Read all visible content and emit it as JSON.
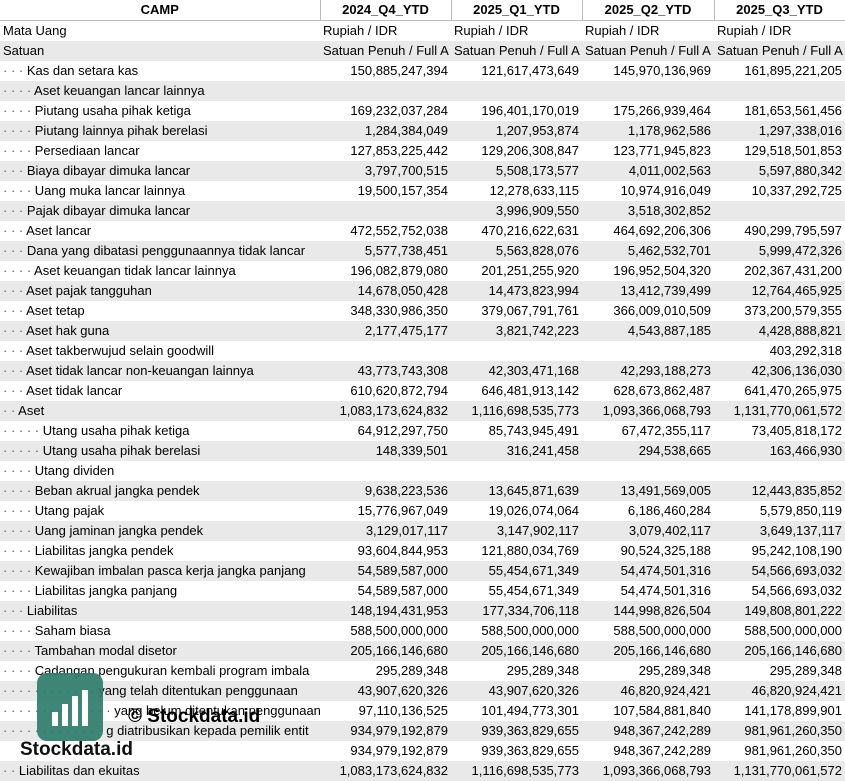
{
  "header": {
    "ticker": "CAMP",
    "periods": [
      "2024_Q4_YTD",
      "2025_Q1_YTD",
      "2025_Q2_YTD",
      "2025_Q3_YTD"
    ]
  },
  "meta_rows": [
    {
      "label": "Mata Uang",
      "values": [
        "Rupiah / IDR",
        "Rupiah / IDR",
        "Rupiah / IDR",
        "Rupiah / IDR"
      ]
    },
    {
      "label": "Satuan",
      "values": [
        "Satuan Penuh / Full A",
        "Satuan Penuh / Full A",
        "Satuan Penuh / Full A",
        "Satuan Penuh / Full A"
      ]
    }
  ],
  "rows": [
    {
      "dots": "· · · ",
      "label": "Kas dan setara kas",
      "values": [
        "150,885,247,394",
        "121,617,473,649",
        "145,970,136,969",
        "161,895,221,205"
      ]
    },
    {
      "dots": "· · · · ",
      "label": "Aset keuangan lancar lainnya",
      "values": [
        "",
        "",
        "",
        ""
      ]
    },
    {
      "dots": "· · · · ",
      "label": "Piutang usaha pihak ketiga",
      "values": [
        "169,232,037,284",
        "196,401,170,019",
        "175,266,939,464",
        "181,653,561,456"
      ]
    },
    {
      "dots": "· · · · ",
      "label": "Piutang lainnya pihak berelasi",
      "values": [
        "1,284,384,049",
        "1,207,953,874",
        "1,178,962,586",
        "1,297,338,016"
      ]
    },
    {
      "dots": "· · · · ",
      "label": "Persediaan lancar",
      "values": [
        "127,853,225,442",
        "129,206,308,847",
        "123,771,945,823",
        "129,518,501,853"
      ]
    },
    {
      "dots": "· · · ",
      "label": "Biaya dibayar dimuka lancar",
      "values": [
        "3,797,700,515",
        "5,508,173,577",
        "4,011,002,563",
        "5,597,880,342"
      ]
    },
    {
      "dots": "· · · · ",
      "label": "Uang muka lancar lainnya",
      "values": [
        "19,500,157,354",
        "12,278,633,115",
        "10,974,916,049",
        "10,337,292,725"
      ]
    },
    {
      "dots": "· · · ",
      "label": "Pajak dibayar dimuka lancar",
      "values": [
        "",
        "3,996,909,550",
        "3,518,302,852",
        ""
      ]
    },
    {
      "dots": "· · · ",
      "label": "Aset lancar",
      "values": [
        "472,552,752,038",
        "470,216,622,631",
        "464,692,206,306",
        "490,299,795,597"
      ]
    },
    {
      "dots": "· · · ",
      "label": "Dana yang dibatasi penggunaannya tidak lancar",
      "values": [
        "5,577,738,451",
        "5,563,828,076",
        "5,462,532,701",
        "5,999,472,326"
      ]
    },
    {
      "dots": "· · · · ",
      "label": "Aset keuangan tidak lancar lainnya",
      "values": [
        "196,082,879,080",
        "201,251,255,920",
        "196,952,504,320",
        "202,367,431,200"
      ]
    },
    {
      "dots": "· · · ",
      "label": "Aset pajak tangguhan",
      "values": [
        "14,678,050,428",
        "14,473,823,994",
        "13,412,739,499",
        "12,764,465,925"
      ]
    },
    {
      "dots": "· · · ",
      "label": "Aset tetap",
      "values": [
        "348,330,986,350",
        "379,067,791,761",
        "366,009,010,509",
        "373,200,579,355"
      ]
    },
    {
      "dots": "· · · ",
      "label": "Aset hak guna",
      "values": [
        "2,177,475,177",
        "3,821,742,223",
        "4,543,887,185",
        "4,428,888,821"
      ]
    },
    {
      "dots": "· · · ",
      "label": "Aset takberwujud selain goodwill",
      "values": [
        "",
        "",
        "",
        "403,292,318"
      ]
    },
    {
      "dots": "· · · ",
      "label": "Aset tidak lancar non-keuangan lainnya",
      "values": [
        "43,773,743,308",
        "42,303,471,168",
        "42,293,188,273",
        "42,306,136,030"
      ]
    },
    {
      "dots": "· · · ",
      "label": "Aset tidak lancar",
      "values": [
        "610,620,872,794",
        "646,481,913,142",
        "628,673,862,487",
        "641,470,265,975"
      ]
    },
    {
      "dots": "· · ",
      "label": "Aset",
      "values": [
        "1,083,173,624,832",
        "1,116,698,535,773",
        "1,093,366,068,793",
        "1,131,770,061,572"
      ]
    },
    {
      "dots": "· · · · · ",
      "label": "Utang usaha pihak ketiga",
      "values": [
        "64,912,297,750",
        "85,743,945,491",
        "67,472,355,117",
        "73,405,818,172"
      ]
    },
    {
      "dots": "· · · · · ",
      "label": "Utang usaha pihak berelasi",
      "values": [
        "148,339,501",
        "316,241,458",
        "294,538,665",
        "163,466,930"
      ]
    },
    {
      "dots": "· · · · ",
      "label": "Utang dividen",
      "values": [
        "",
        "",
        "",
        ""
      ]
    },
    {
      "dots": "· · · · ",
      "label": "Beban akrual jangka pendek",
      "values": [
        "9,638,223,536",
        "13,645,871,639",
        "13,491,569,005",
        "12,443,835,852"
      ]
    },
    {
      "dots": "· · · · ",
      "label": "Utang pajak",
      "values": [
        "15,776,967,049",
        "19,026,074,064",
        "6,186,460,284",
        "5,579,850,119"
      ]
    },
    {
      "dots": "· · · · ",
      "label": "Uang jaminan jangka pendek",
      "values": [
        "3,129,017,117",
        "3,147,902,117",
        "3,079,402,117",
        "3,649,137,117"
      ]
    },
    {
      "dots": "· · · · ",
      "label": "Liabilitas jangka pendek",
      "values": [
        "93,604,844,953",
        "121,880,034,769",
        "90,524,325,188",
        "95,242,108,190"
      ]
    },
    {
      "dots": "· · · · ",
      "label": "Kewajiban imbalan pasca kerja jangka panjang",
      "values": [
        "54,589,587,000",
        "55,454,671,349",
        "54,474,501,316",
        "54,566,693,032"
      ]
    },
    {
      "dots": "· · · · ",
      "label": "Liabilitas jangka panjang",
      "values": [
        "54,589,587,000",
        "55,454,671,349",
        "54,474,501,316",
        "54,566,693,032"
      ]
    },
    {
      "dots": "· · · ",
      "label": "Liabilitas",
      "values": [
        "148,194,431,953",
        "177,334,706,118",
        "144,998,826,504",
        "149,808,801,222"
      ]
    },
    {
      "dots": "· · · · ",
      "label": "Saham biasa",
      "values": [
        "588,500,000,000",
        "588,500,000,000",
        "588,500,000,000",
        "588,500,000,000"
      ]
    },
    {
      "dots": "· · · · ",
      "label": "Tambahan modal disetor",
      "values": [
        "205,166,146,680",
        "205,166,146,680",
        "205,166,146,680",
        "205,166,146,680"
      ]
    },
    {
      "dots": "· · · · ",
      "label": "Cadangan pengukuran kembali program imbala",
      "values": [
        "295,289,348",
        "295,289,348",
        "295,289,348",
        "295,289,348"
      ]
    },
    {
      "dots": "· · · · · · · · · · · · ",
      "label": "yang telah ditentukan penggunaan",
      "values": [
        "43,907,620,326",
        "43,907,620,326",
        "46,820,924,421",
        "46,820,924,421"
      ]
    },
    {
      "dots": "· · · · · · · · · · · · · · ",
      "label": "yang belum ditentukan penggunaan",
      "values": [
        "97,110,136,525",
        "101,494,773,301",
        "107,584,881,840",
        "141,178,899,901"
      ]
    },
    {
      "dots": "· · · · · · · · · · · · · ",
      "label": "g diatribusikan kepada pemilik entit",
      "values": [
        "934,979,192,879",
        "939,363,829,655",
        "948,367,242,289",
        "981,961,260,350"
      ]
    },
    {
      "dots": "",
      "label": "",
      "values": [
        "934,979,192,879",
        "939,363,829,655",
        "948,367,242,289",
        "981,961,260,350"
      ]
    },
    {
      "dots": "· · ",
      "label": "Liabilitas dan ekuitas",
      "values": [
        "1,083,173,624,832",
        "1,116,698,535,773",
        "1,093,366,068,793",
        "1,131,770,061,572"
      ]
    }
  ],
  "watermark": {
    "text": "© Stockdata.id",
    "brand": "Stockdata.id"
  },
  "colors": {
    "row_shade": "#e9e9e9",
    "logo": "#2e7d6b"
  }
}
